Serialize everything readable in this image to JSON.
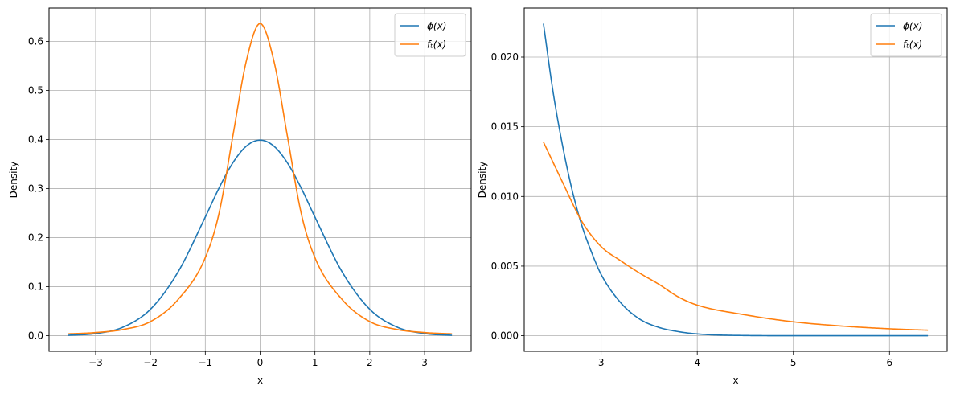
{
  "chart_data": [
    {
      "type": "line",
      "xlabel": "x",
      "ylabel": "Density",
      "xlim": [
        -3.85,
        3.85
      ],
      "ylim": [
        -0.03185,
        0.66807
      ],
      "xticks": [
        -3,
        -2,
        -1,
        0,
        1,
        2,
        3
      ],
      "xtick_labels": [
        "−3",
        "−2",
        "−1",
        "0",
        "1",
        "2",
        "3"
      ],
      "yticks": [
        0.0,
        0.1,
        0.2,
        0.3,
        0.4,
        0.5,
        0.6
      ],
      "ytick_labels": [
        "0.0",
        "0.1",
        "0.2",
        "0.3",
        "0.4",
        "0.5",
        "0.6"
      ],
      "grid": true,
      "legend_position": "top-right",
      "series": [
        {
          "name": "ϕ(x)",
          "color": "#1f77b4",
          "x": [
            -3.5,
            -3.0,
            -2.5,
            -2.0,
            -1.5,
            -1.0,
            -0.75,
            -0.5,
            -0.25,
            0.0,
            0.25,
            0.5,
            0.75,
            1.0,
            1.5,
            2.0,
            2.5,
            3.0,
            3.5
          ],
          "y": [
            0.0009,
            0.0044,
            0.0175,
            0.054,
            0.1295,
            0.242,
            0.301,
            0.3521,
            0.3867,
            0.3989,
            0.3867,
            0.3521,
            0.301,
            0.242,
            0.1295,
            0.054,
            0.0175,
            0.0044,
            0.0009
          ]
        },
        {
          "name": "fₜ(x)",
          "color": "#ff7f0e",
          "x": [
            -3.5,
            -3.0,
            -2.5,
            -2.0,
            -1.5,
            -1.0,
            -0.75,
            -0.5,
            -0.25,
            0.0,
            0.25,
            0.5,
            0.75,
            1.0,
            1.5,
            2.0,
            2.5,
            3.0,
            3.5
          ],
          "y": [
            0.0038,
            0.0064,
            0.0127,
            0.0289,
            0.0734,
            0.1592,
            0.2493,
            0.4054,
            0.5609,
            0.6366,
            0.5609,
            0.4054,
            0.2493,
            0.1592,
            0.0734,
            0.0289,
            0.0127,
            0.0064,
            0.0038
          ]
        }
      ]
    },
    {
      "type": "line",
      "xlabel": "x",
      "ylabel": "Density",
      "xlim": [
        2.2,
        6.6
      ],
      "ylim": [
        -0.00112,
        0.02352
      ],
      "xticks": [
        3,
        4,
        5,
        6
      ],
      "xtick_labels": [
        "3",
        "4",
        "5",
        "6"
      ],
      "yticks": [
        0.0,
        0.005,
        0.01,
        0.015,
        0.02
      ],
      "ytick_labels": [
        "0.000",
        "0.005",
        "0.010",
        "0.015",
        "0.020"
      ],
      "grid": true,
      "legend_position": "top-right",
      "series": [
        {
          "name": "ϕ(x)",
          "color": "#1f77b4",
          "x": [
            2.4,
            2.5,
            2.6,
            2.7,
            2.8,
            2.9,
            3.0,
            3.2,
            3.4,
            3.6,
            3.8,
            4.0,
            4.5,
            5.0,
            5.5,
            6.0,
            6.4
          ],
          "y": [
            0.0224,
            0.0175,
            0.0136,
            0.0104,
            0.0079,
            0.006,
            0.0044,
            0.0024,
            0.0012,
            0.0006,
            0.0003,
            0.00013,
            1.6e-05,
            1.5e-06,
            0.0,
            0.0,
            0.0
          ]
        },
        {
          "name": "fₜ(x)",
          "color": "#ff7f0e",
          "x": [
            2.4,
            2.6,
            2.8,
            3.0,
            3.2,
            3.4,
            3.6,
            3.8,
            4.0,
            4.5,
            5.0,
            5.5,
            6.0,
            6.4
          ],
          "y": [
            0.0139,
            0.011,
            0.0082,
            0.0064,
            0.0054,
            0.0045,
            0.0037,
            0.0028,
            0.0022,
            0.0015,
            0.001,
            0.0007,
            0.0005,
            0.0004
          ]
        }
      ]
    }
  ]
}
